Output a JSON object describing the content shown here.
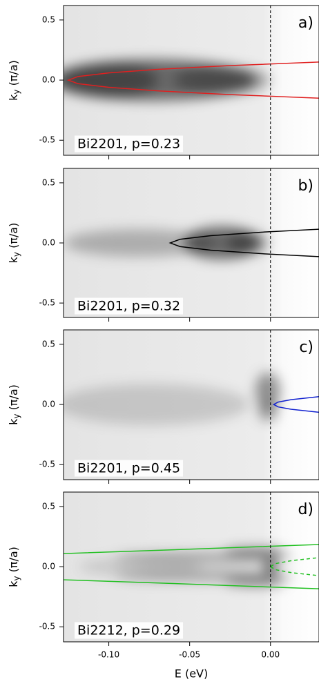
{
  "chart_data": [
    {
      "type": "line",
      "label": "a)",
      "sample": "Bi2201, p=0.23",
      "ylabel": [
        "k",
        "y",
        " (π/a)"
      ],
      "xlim": [
        -0.128,
        0.03
      ],
      "ylim": [
        -0.625,
        0.62
      ],
      "xticks": [
        -0.1,
        -0.05,
        0
      ],
      "yticks": [
        0.5,
        {
          "value": 0,
          "label": "0.0"
        },
        -0.5
      ],
      "vline": 0,
      "series": [
        {
          "color": "#e02020",
          "x": [
            0.03,
            -0.026,
            -0.069,
            -0.1,
            -0.119,
            -0.125,
            -0.119,
            -0.1,
            -0.069,
            -0.026,
            0.03
          ],
          "values": [
            0.15,
            0.12,
            0.09,
            0.06,
            0.03,
            0,
            -0.03,
            -0.06,
            -0.09,
            -0.12,
            -0.15
          ]
        }
      ]
    },
    {
      "type": "line",
      "label": "b)",
      "sample": "Bi2201, p=0.32",
      "ylabel": [
        "k",
        "y",
        " (π/a)"
      ],
      "xlim": [
        -0.128,
        0.03
      ],
      "ylim": [
        -0.62,
        0.62
      ],
      "xticks": [
        -0.1,
        -0.05,
        0
      ],
      "yticks": [
        0.5,
        {
          "value": 0,
          "label": "0.0"
        },
        -0.5
      ],
      "vline": 0,
      "series": [
        {
          "color": "#000000",
          "x": [
            0.031,
            -0.005,
            -0.037,
            -0.056,
            -0.062,
            -0.056,
            -0.037,
            -0.005,
            0.031
          ],
          "values": [
            0.115,
            0.09,
            0.06,
            0.03,
            0,
            -0.03,
            -0.06,
            -0.09,
            -0.115
          ]
        }
      ]
    },
    {
      "type": "line",
      "label": "c)",
      "sample": "Bi2201, p=0.45",
      "ylabel": [
        "k",
        "y",
        " (π/a)"
      ],
      "xlim": [
        -0.128,
        0.03
      ],
      "ylim": [
        -0.625,
        0.62
      ],
      "xticks": [
        -0.1,
        -0.05,
        0
      ],
      "yticks": [
        0.5,
        {
          "value": 0,
          "label": "0.0"
        },
        -0.5
      ],
      "vline": 0,
      "series": [
        {
          "color": "#1020d0",
          "x": [
            0.03,
            0.0127,
            0.0047,
            0.002,
            0.0047,
            0.0127,
            0.03
          ],
          "values": [
            0.065,
            0.04,
            0.02,
            0,
            -0.02,
            -0.04,
            -0.065
          ]
        }
      ]
    },
    {
      "type": "line",
      "label": "d)",
      "sample": "Bi2212, p=0.29",
      "xlabel": "E (eV)",
      "ylabel": [
        "k",
        "y",
        " (π/a)"
      ],
      "xlim": [
        -0.128,
        0.03
      ],
      "ylim": [
        -0.625,
        0.62
      ],
      "xticks": [
        {
          "value": -0.1,
          "label": "-0.10"
        },
        {
          "value": -0.05,
          "label": "-0.05"
        },
        {
          "value": 0,
          "label": "0.00"
        }
      ],
      "yticks": [
        0.5,
        {
          "value": 0,
          "label": "0.0"
        },
        -0.5
      ],
      "vline": 0,
      "series": [
        {
          "color": "#22c022",
          "x": [
            -0.128,
            -0.05,
            0.03
          ],
          "values": [
            0.109,
            0.145,
            0.184
          ]
        },
        {
          "color": "#22c022",
          "x": [
            -0.128,
            -0.05,
            0.03
          ],
          "values": [
            -0.109,
            -0.145,
            -0.184
          ]
        },
        {
          "color": "#22c022",
          "dashed": true,
          "x": [
            0,
            0.003,
            0.013,
            0.03
          ],
          "values": [
            0,
            0.025,
            0.05,
            0.075
          ]
        },
        {
          "color": "#22c022",
          "dashed": true,
          "x": [
            0,
            0.003,
            0.013,
            0.03
          ],
          "values": [
            0,
            -0.025,
            -0.05,
            -0.075
          ]
        }
      ]
    }
  ]
}
